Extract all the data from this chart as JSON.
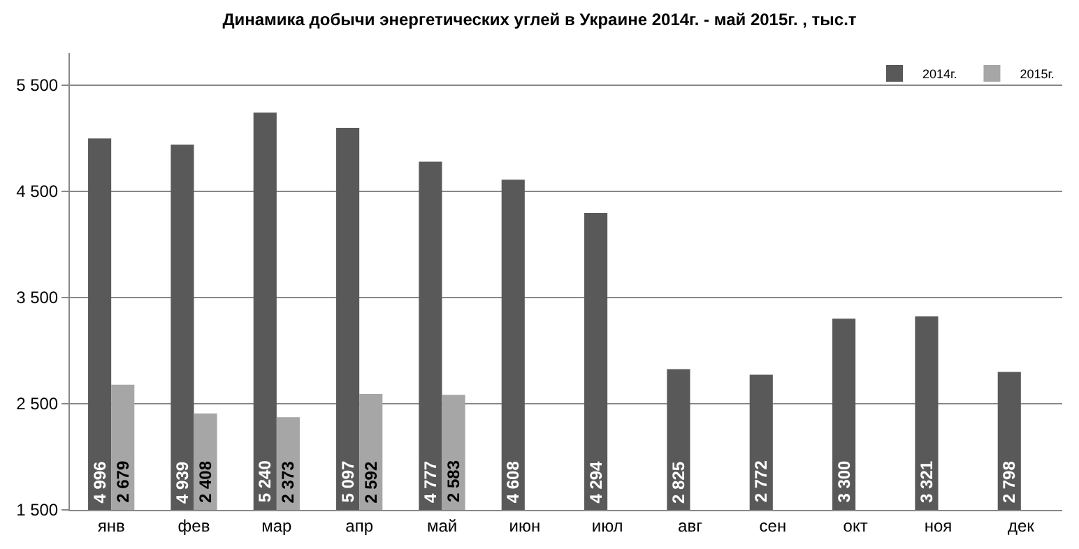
{
  "chart_data": {
    "type": "bar",
    "title": "Динамика добычи энергетических углей в Украине 2014г. - май 2015г. , тыс.т",
    "categories": [
      "янв",
      "фев",
      "мар",
      "апр",
      "май",
      "июн",
      "июл",
      "авг",
      "сен",
      "окт",
      "ноя",
      "дек"
    ],
    "series": [
      {
        "name": "2014г.",
        "color": "#595959",
        "values": [
          4996,
          4939,
          5240,
          5097,
          4777,
          4608,
          4294,
          2825,
          2772,
          3300,
          3321,
          2798
        ],
        "value_labels": [
          "4 996",
          "4 939",
          "5 240",
          "5 097",
          "4 777",
          "4 608",
          "4 294",
          "2 825",
          "2 772",
          "3 300",
          "3 321",
          "2 798"
        ]
      },
      {
        "name": "2015г.",
        "color": "#a6a6a6",
        "values": [
          2679,
          2408,
          2373,
          2592,
          2583,
          null,
          null,
          null,
          null,
          null,
          null,
          null
        ],
        "value_labels": [
          "2 679",
          "2 408",
          "2 373",
          "2 592",
          "2 583",
          null,
          null,
          null,
          null,
          null,
          null,
          null
        ]
      }
    ],
    "ylim": [
      1500,
      5800
    ],
    "yticks": [
      {
        "value": 1500,
        "label": "1 500"
      },
      {
        "value": 2500,
        "label": "2 500"
      },
      {
        "value": 3500,
        "label": "3 500"
      },
      {
        "value": 4500,
        "label": "4 500"
      },
      {
        "value": 5500,
        "label": "5 500"
      }
    ],
    "grid": "y",
    "legend": "top right"
  }
}
